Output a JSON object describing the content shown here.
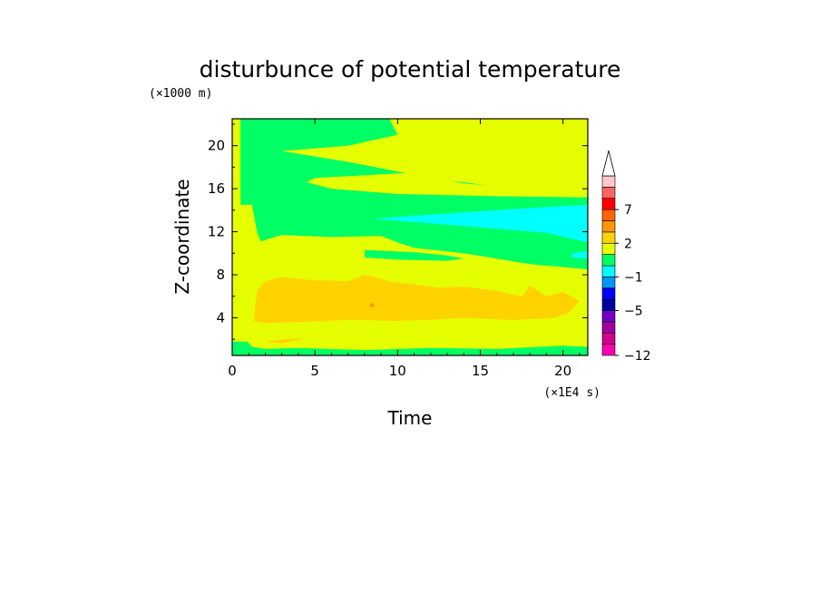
{
  "chart_data": {
    "type": "heatmap",
    "title": "disturbunce of potential temperature",
    "xlabel": "Time",
    "ylabel": "Z-coordinate",
    "x_unit": "(×1E4 s)",
    "y_unit": "(×1000 m)",
    "xlim": [
      0,
      21.5
    ],
    "ylim": [
      0.5,
      22.5
    ],
    "x_ticks": [
      0,
      5,
      10,
      15,
      20
    ],
    "y_ticks": [
      4,
      8,
      12,
      16,
      20
    ],
    "colorbar": {
      "levels": [
        {
          "value": -12,
          "color": "#ff00b4"
        },
        {
          "value": -10,
          "color": "#d2008c"
        },
        {
          "value": -8,
          "color": "#a000a0"
        },
        {
          "value": -6,
          "color": "#7000c8"
        },
        {
          "value": -5,
          "color": "#0000a0"
        },
        {
          "value": -4,
          "color": "#0000ff"
        },
        {
          "value": -2,
          "color": "#0096ff"
        },
        {
          "value": -1,
          "color": "#00ffff"
        },
        {
          "value": 0,
          "color": "#00ff64"
        },
        {
          "value": 1,
          "color": "#e6ff00"
        },
        {
          "value": 2,
          "color": "#ffd200"
        },
        {
          "value": 3,
          "color": "#ff9600"
        },
        {
          "value": 5,
          "color": "#ff6400"
        },
        {
          "value": 7,
          "color": "#ff0000"
        },
        {
          "value": 9,
          "color": "#ff6464"
        },
        {
          "value": 11,
          "color": "#ffc8c8"
        }
      ],
      "tick_labels": [
        "7",
        "2",
        "−1",
        "−5",
        "−12"
      ],
      "tick_values": [
        7,
        2,
        -1,
        -5,
        -12
      ],
      "extend": "max",
      "extend_color": "#ffffff"
    },
    "regions": [
      {
        "level": 1,
        "desc": "yellow background",
        "poly": [
          [
            0,
            0.5
          ],
          [
            21.5,
            0.5
          ],
          [
            21.5,
            22.5
          ],
          [
            0,
            22.5
          ]
        ]
      },
      {
        "level": 0,
        "desc": "upper green layer",
        "poly": [
          [
            1.2,
            22.5
          ],
          [
            9.5,
            22.5
          ],
          [
            10,
            21
          ],
          [
            7,
            20
          ],
          [
            3,
            19.5
          ],
          [
            7,
            18.5
          ],
          [
            12,
            17
          ],
          [
            17,
            16
          ],
          [
            21.5,
            15.5
          ],
          [
            21.5,
            8
          ],
          [
            15,
            8.5
          ],
          [
            10,
            9
          ],
          [
            6,
            9
          ],
          [
            3,
            9.5
          ],
          [
            2,
            10
          ],
          [
            1.5,
            12
          ],
          [
            1.2,
            14.5
          ],
          [
            0.5,
            14.5
          ],
          [
            0.5,
            22.5
          ]
        ]
      },
      {
        "level": 1,
        "desc": "yellow tongue 16-18 km",
        "poly": [
          [
            5,
            17
          ],
          [
            11,
            17.5
          ],
          [
            14,
            16.5
          ],
          [
            18,
            16
          ],
          [
            21.5,
            15.5
          ],
          [
            21.5,
            15.2
          ],
          [
            16,
            15.3
          ],
          [
            10,
            15.5
          ],
          [
            6,
            16
          ],
          [
            4.5,
            16.6
          ]
        ]
      },
      {
        "level": 1,
        "desc": "lower yellow layer",
        "poly": [
          [
            1.5,
            2
          ],
          [
            1.5,
            11
          ],
          [
            3,
            11.7
          ],
          [
            6,
            11.5
          ],
          [
            9,
            11.6
          ],
          [
            10,
            11
          ],
          [
            11,
            10.5
          ],
          [
            14,
            10
          ],
          [
            18,
            9
          ],
          [
            21.5,
            8.5
          ],
          [
            21.5,
            1
          ],
          [
            2,
            1
          ]
        ]
      },
      {
        "level": 0,
        "desc": "green strip 10 km",
        "poly": [
          [
            8,
            10.3
          ],
          [
            11,
            10.1
          ],
          [
            13,
            9.8
          ],
          [
            14,
            9.5
          ],
          [
            13,
            9.3
          ],
          [
            10,
            9.4
          ],
          [
            8,
            9.6
          ]
        ]
      },
      {
        "level": -1,
        "desc": "cyan wedge",
        "poly": [
          [
            8.5,
            13.2
          ],
          [
            12,
            13.6
          ],
          [
            16,
            14
          ],
          [
            20,
            14.4
          ],
          [
            21.5,
            14.5
          ],
          [
            21.5,
            11
          ],
          [
            19,
            11.9
          ],
          [
            15,
            12.4
          ],
          [
            11,
            12.9
          ]
        ]
      },
      {
        "level": -1,
        "desc": "cyan blob right",
        "poly": [
          [
            20.5,
            10
          ],
          [
            21.5,
            10.2
          ],
          [
            21.5,
            9.5
          ],
          [
            20.6,
            9.6
          ]
        ]
      },
      {
        "level": 2,
        "desc": "orange core",
        "poly": [
          [
            1.3,
            3.7
          ],
          [
            1.5,
            6.5
          ],
          [
            2,
            7.4
          ],
          [
            3,
            7.8
          ],
          [
            5,
            7.5
          ],
          [
            7,
            7.4
          ],
          [
            8,
            8
          ],
          [
            9.5,
            7.4
          ],
          [
            11,
            7.1
          ],
          [
            12.5,
            6.8
          ],
          [
            14,
            6.9
          ],
          [
            16,
            6.5
          ],
          [
            17.5,
            6
          ],
          [
            18,
            7
          ],
          [
            19,
            6
          ],
          [
            20,
            6.4
          ],
          [
            21,
            5.6
          ],
          [
            20.4,
            4.5
          ],
          [
            19.5,
            4
          ],
          [
            17,
            3.8
          ],
          [
            14,
            4
          ],
          [
            12,
            3.8
          ],
          [
            10,
            3.7
          ],
          [
            7,
            3.8
          ],
          [
            4,
            3.6
          ],
          [
            2,
            3.5
          ]
        ]
      },
      {
        "level": 3,
        "desc": "small orange spot",
        "poly": [
          [
            8.3,
            5.2
          ],
          [
            8.5,
            5.4
          ],
          [
            8.6,
            5.1
          ],
          [
            8.4,
            4.9
          ]
        ]
      },
      {
        "level": 0,
        "desc": "bottom green band",
        "poly": [
          [
            0,
            0.5
          ],
          [
            21.5,
            0.5
          ],
          [
            21.5,
            1.3
          ],
          [
            20,
            1.4
          ],
          [
            16,
            1.1
          ],
          [
            12,
            1.2
          ],
          [
            8,
            1
          ],
          [
            4,
            1.2
          ],
          [
            2,
            1.1
          ],
          [
            1.2,
            1.3
          ],
          [
            0.9,
            1.8
          ],
          [
            0,
            1.8
          ]
        ]
      },
      {
        "level": 2,
        "desc": "orange streak near surface",
        "poly": [
          [
            2,
            1.8
          ],
          [
            3,
            2
          ],
          [
            4.5,
            2.1
          ],
          [
            3,
            1.6
          ]
        ]
      }
    ]
  }
}
